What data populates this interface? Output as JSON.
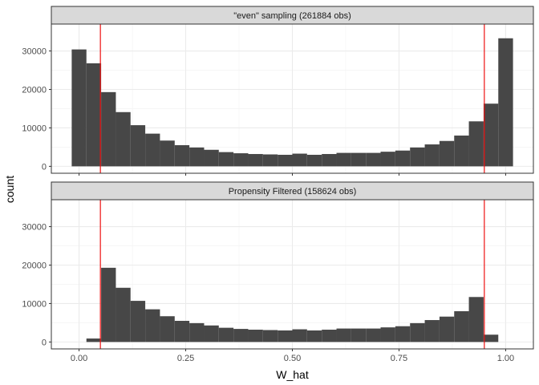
{
  "chart_data": {
    "type": "bar",
    "xlabel": "W_hat",
    "ylabel": "count",
    "xlim": [
      -0.065,
      1.065
    ],
    "ylim": [
      -1800,
      37000
    ],
    "x_ticks": [
      {
        "value": 0.0,
        "label": "0.00"
      },
      {
        "value": 0.25,
        "label": "0.25"
      },
      {
        "value": 0.5,
        "label": "0.50"
      },
      {
        "value": 0.75,
        "label": "0.75"
      },
      {
        "value": 1.0,
        "label": "1.00"
      }
    ],
    "y_ticks": [
      {
        "value": 0,
        "label": "0"
      },
      {
        "value": 10000,
        "label": "10000"
      },
      {
        "value": 20000,
        "label": "20000"
      },
      {
        "value": 30000,
        "label": "30000"
      }
    ],
    "grid": true,
    "bin_width": 0.0345,
    "bar_color": "#474747",
    "vline_color": "#ee1111",
    "panels": [
      {
        "title": "\"even\" sampling (261884 obs)",
        "bin_centers": [
          0.0,
          0.0345,
          0.069,
          0.1034,
          0.1379,
          0.1724,
          0.2069,
          0.2414,
          0.2759,
          0.3103,
          0.3448,
          0.3793,
          0.4138,
          0.4483,
          0.4828,
          0.5172,
          0.5517,
          0.5862,
          0.6207,
          0.6552,
          0.6897,
          0.7241,
          0.7586,
          0.7931,
          0.8276,
          0.8621,
          0.8966,
          0.931,
          0.9655,
          1.0
        ],
        "counts": [
          30400,
          26800,
          19300,
          14100,
          10700,
          8500,
          6700,
          5500,
          4900,
          4300,
          3700,
          3400,
          3200,
          3100,
          3000,
          3300,
          3000,
          3200,
          3500,
          3500,
          3500,
          3800,
          4100,
          4900,
          5700,
          6600,
          8000,
          11700,
          16300,
          33300
        ],
        "vlines": [
          0.05,
          0.95
        ]
      },
      {
        "title": "Propensity Filtered (158624 obs)",
        "bin_centers": [
          0.0345,
          0.069,
          0.1034,
          0.1379,
          0.1724,
          0.2069,
          0.2414,
          0.2759,
          0.3103,
          0.3448,
          0.3793,
          0.4138,
          0.4483,
          0.4828,
          0.5172,
          0.5517,
          0.5862,
          0.6207,
          0.6552,
          0.6897,
          0.7241,
          0.7586,
          0.7931,
          0.8276,
          0.8621,
          0.8966,
          0.931,
          0.9655
        ],
        "counts": [
          900,
          19300,
          14100,
          10700,
          8500,
          6700,
          5500,
          4900,
          4300,
          3700,
          3400,
          3200,
          3100,
          3000,
          3300,
          3000,
          3200,
          3500,
          3500,
          3500,
          3800,
          4100,
          4900,
          5700,
          6600,
          8000,
          11700,
          1900
        ],
        "vlines": [
          0.05,
          0.95
        ]
      }
    ]
  }
}
